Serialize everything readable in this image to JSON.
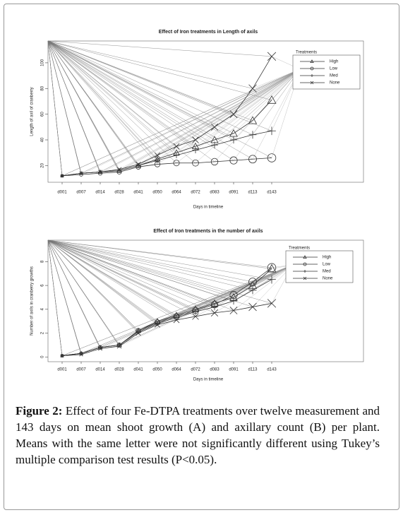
{
  "chart_data": [
    {
      "type": "line",
      "title": "Effect of Iron treatments in Length of axils",
      "x_label": "Days in timeline",
      "y_label": "Length of axil of cranberry",
      "categories": [
        "d001",
        "d007",
        "d014",
        "d028",
        "d041",
        "d050",
        "d064",
        "d072",
        "d083",
        "d091",
        "d113",
        "d143"
      ],
      "ylim": [
        7,
        117
      ],
      "yticks": [
        20,
        40,
        60,
        80,
        100
      ],
      "legend_title": "Treatments",
      "legend": "upper right",
      "series": [
        {
          "name": "High",
          "color": "#333333",
          "marker": "triangle",
          "values": [
            12,
            14,
            15,
            16,
            20,
            25,
            30,
            35,
            40,
            45,
            55,
            71
          ]
        },
        {
          "name": "Low",
          "color": "#333333",
          "marker": "circle",
          "values": [
            12,
            13,
            14,
            15,
            19,
            21,
            22,
            22,
            23,
            24,
            25,
            26
          ]
        },
        {
          "name": "Med",
          "color": "#333333",
          "marker": "plus",
          "values": [
            12,
            14,
            15,
            16,
            20,
            24,
            28,
            32,
            36,
            40,
            44,
            47
          ]
        },
        {
          "name": "None",
          "color": "#333333",
          "marker": "x",
          "values": [
            12,
            14,
            15,
            17,
            21,
            28,
            35,
            40,
            50,
            60,
            80,
            105
          ]
        }
      ]
    },
    {
      "type": "line",
      "title": "Effect of Iron treatments in the number of axils",
      "x_label": "Days in timeline",
      "y_label": "Number of axils in cranberry growths",
      "categories": [
        "d001",
        "d007",
        "d014",
        "d028",
        "d041",
        "d050",
        "d064",
        "d072",
        "d083",
        "d091",
        "d113",
        "d143"
      ],
      "ylim": [
        -0.4,
        9.8
      ],
      "yticks": [
        0,
        2,
        4,
        6,
        8
      ],
      "legend_title": "Treatments",
      "legend": "upper right",
      "series": [
        {
          "name": "High",
          "color": "#333333",
          "marker": "triangle",
          "values": [
            0.1,
            0.3,
            0.8,
            1.0,
            2.2,
            3.0,
            3.5,
            4.0,
            4.5,
            5.0,
            6.0,
            7.4
          ]
        },
        {
          "name": "Low",
          "color": "#333333",
          "marker": "circle",
          "values": [
            0.1,
            0.3,
            0.8,
            1.0,
            2.2,
            2.9,
            3.4,
            3.9,
            4.4,
            5.2,
            6.3,
            7.5
          ]
        },
        {
          "name": "Med",
          "color": "#333333",
          "marker": "plus",
          "values": [
            0.1,
            0.3,
            0.8,
            1.0,
            2.1,
            2.8,
            3.3,
            3.8,
            4.2,
            4.7,
            5.6,
            6.5
          ]
        },
        {
          "name": "None",
          "color": "#333333",
          "marker": "x",
          "values": [
            0.1,
            0.2,
            0.7,
            0.9,
            2.0,
            2.7,
            3.1,
            3.4,
            3.7,
            3.9,
            4.2,
            4.5
          ]
        }
      ]
    }
  ],
  "caption": {
    "label": "Figure 2:",
    "text": "Effect of four Fe-DTPA treatments over twelve measurement and 143 days on mean shoot growth (A) and axillary count (B) per plant. Means with the same letter were not significantly different using Tukey’s multiple comparison test results (P<0.05)."
  }
}
